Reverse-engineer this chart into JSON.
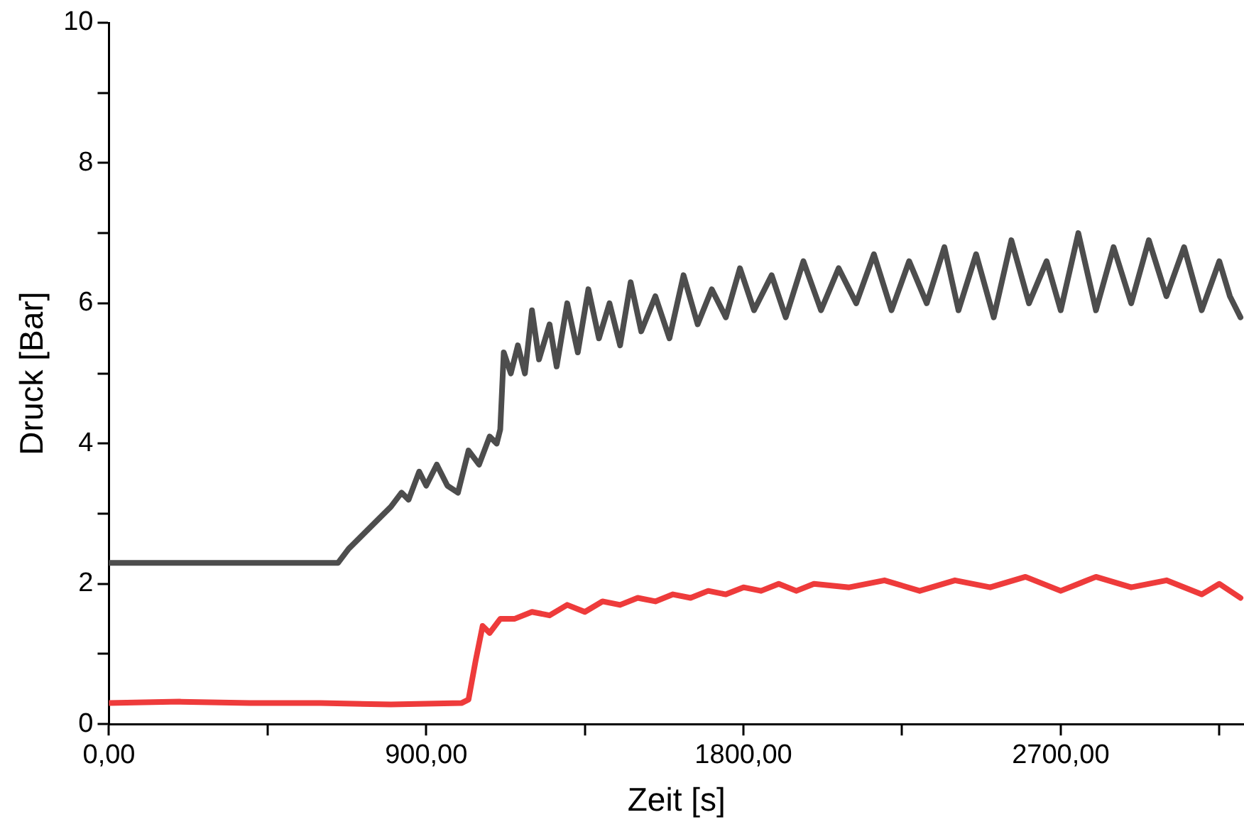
{
  "chart_data": {
    "type": "line",
    "xlabel": "Zeit [s]",
    "ylabel": "Druck [Bar]",
    "xlim": [
      0,
      3220
    ],
    "ylim": [
      0,
      10
    ],
    "xticks": [
      {
        "value": 0,
        "label": "0,00"
      },
      {
        "value": 450,
        "label": null
      },
      {
        "value": 900,
        "label": "900,00"
      },
      {
        "value": 1350,
        "label": null
      },
      {
        "value": 1800,
        "label": "1800,00"
      },
      {
        "value": 2250,
        "label": null
      },
      {
        "value": 2700,
        "label": "2700,00"
      },
      {
        "value": 3150,
        "label": null
      }
    ],
    "yticks": [
      0,
      {
        "value": 1,
        "label": null
      },
      2,
      {
        "value": 3,
        "label": null
      },
      4,
      {
        "value": 5,
        "label": null
      },
      6,
      {
        "value": 7,
        "label": null
      },
      8,
      {
        "value": 9,
        "label": null
      },
      10
    ],
    "grid": false,
    "legend": false,
    "marker": "none",
    "line_style": "solid",
    "series": [
      {
        "color": "#4d4d4d",
        "x": [
          0,
          300,
          650,
          680,
          720,
          760,
          800,
          830,
          850,
          880,
          900,
          930,
          960,
          990,
          1020,
          1050,
          1080,
          1100,
          1110,
          1120,
          1140,
          1160,
          1180,
          1200,
          1220,
          1250,
          1270,
          1300,
          1330,
          1360,
          1390,
          1420,
          1450,
          1480,
          1510,
          1550,
          1590,
          1630,
          1670,
          1710,
          1750,
          1790,
          1830,
          1880,
          1920,
          1970,
          2020,
          2070,
          2120,
          2170,
          2220,
          2270,
          2320,
          2370,
          2410,
          2460,
          2510,
          2560,
          2610,
          2660,
          2700,
          2750,
          2800,
          2850,
          2900,
          2950,
          3000,
          3050,
          3100,
          3150,
          3180,
          3210
        ],
        "values": [
          2.3,
          2.3,
          2.3,
          2.5,
          2.7,
          2.9,
          3.1,
          3.3,
          3.2,
          3.6,
          3.4,
          3.7,
          3.4,
          3.3,
          3.9,
          3.7,
          4.1,
          4.0,
          4.2,
          5.3,
          5.0,
          5.4,
          5.0,
          5.9,
          5.2,
          5.7,
          5.1,
          6.0,
          5.3,
          6.2,
          5.5,
          6.0,
          5.4,
          6.3,
          5.6,
          6.1,
          5.5,
          6.4,
          5.7,
          6.2,
          5.8,
          6.5,
          5.9,
          6.4,
          5.8,
          6.6,
          5.9,
          6.5,
          6.0,
          6.7,
          5.9,
          6.6,
          6.0,
          6.8,
          5.9,
          6.7,
          5.8,
          6.9,
          6.0,
          6.6,
          5.9,
          7.0,
          5.9,
          6.8,
          6.0,
          6.9,
          6.1,
          6.8,
          5.9,
          6.6,
          6.1,
          5.8
        ]
      },
      {
        "color": "#ee3b3b",
        "x": [
          0,
          200,
          400,
          600,
          800,
          1000,
          1020,
          1040,
          1060,
          1080,
          1110,
          1150,
          1200,
          1250,
          1300,
          1350,
          1400,
          1450,
          1500,
          1550,
          1600,
          1650,
          1700,
          1750,
          1800,
          1850,
          1900,
          1950,
          2000,
          2100,
          2200,
          2300,
          2400,
          2500,
          2600,
          2700,
          2800,
          2900,
          3000,
          3100,
          3150,
          3210
        ],
        "values": [
          0.3,
          0.32,
          0.3,
          0.3,
          0.28,
          0.3,
          0.35,
          0.9,
          1.4,
          1.3,
          1.5,
          1.5,
          1.6,
          1.55,
          1.7,
          1.6,
          1.75,
          1.7,
          1.8,
          1.75,
          1.85,
          1.8,
          1.9,
          1.85,
          1.95,
          1.9,
          2.0,
          1.9,
          2.0,
          1.95,
          2.05,
          1.9,
          2.05,
          1.95,
          2.1,
          1.9,
          2.1,
          1.95,
          2.05,
          1.85,
          2.0,
          1.8
        ]
      }
    ]
  }
}
